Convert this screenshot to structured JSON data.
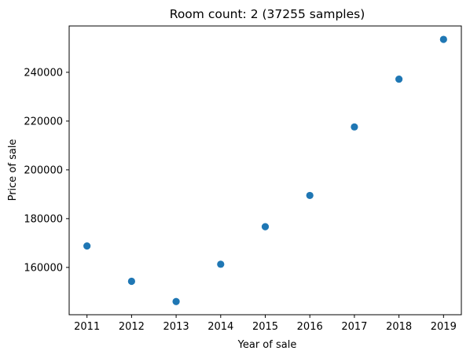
{
  "chart_data": {
    "type": "scatter",
    "title": "Room count: 2 (37255 samples)",
    "xlabel": "Year of sale",
    "ylabel": "Price of sale",
    "x": [
      2011,
      2012,
      2013,
      2014,
      2015,
      2016,
      2017,
      2018,
      2019
    ],
    "y": [
      168800,
      154300,
      146000,
      161300,
      176700,
      189500,
      217600,
      237200,
      253500
    ],
    "xlim": [
      2010.6,
      2019.4
    ],
    "ylim": [
      140600,
      259000
    ],
    "xticks": [
      "2011",
      "2012",
      "2013",
      "2014",
      "2015",
      "2016",
      "2017",
      "2018",
      "2019"
    ],
    "yticks": [
      160000,
      180000,
      200000,
      220000,
      240000
    ],
    "ytick_labels": [
      "160000",
      "180000",
      "200000",
      "220000",
      "240000"
    ],
    "grid": false,
    "marker_color": "#1f77b4"
  }
}
